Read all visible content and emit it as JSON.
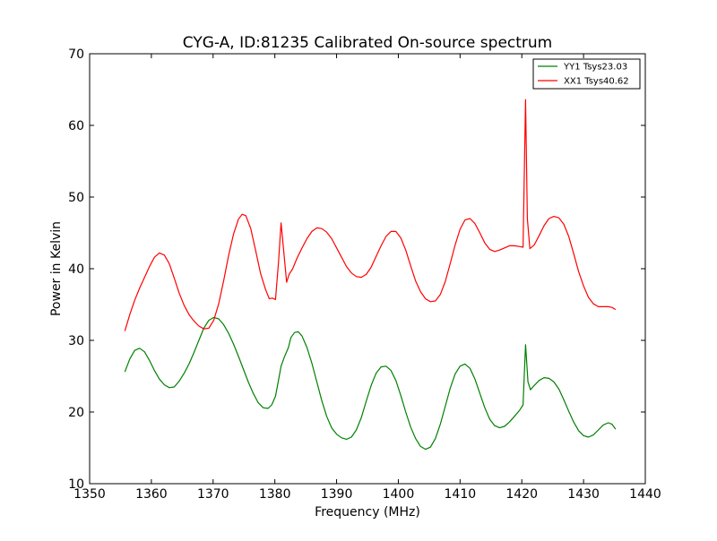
{
  "chart_data": {
    "type": "line",
    "title": "CYG-A, ID:81235 Calibrated On-source spectrum",
    "xlabel": "Frequency (MHz)",
    "ylabel": "Power in Kelvin",
    "xlim": [
      1350,
      1440
    ],
    "ylim": [
      10,
      70
    ],
    "xticks": [
      1350,
      1360,
      1370,
      1380,
      1390,
      1400,
      1410,
      1420,
      1430,
      1440
    ],
    "yticks": [
      10,
      20,
      30,
      40,
      50,
      60,
      70
    ],
    "grid": false,
    "legend_position": "top-right",
    "series": [
      {
        "name": "YY1 Tsys23.03",
        "color": "#008000",
        "points": [
          [
            1355.7,
            25.6
          ],
          [
            1356.5,
            27.4
          ],
          [
            1357.3,
            28.6
          ],
          [
            1358.1,
            28.9
          ],
          [
            1358.9,
            28.4
          ],
          [
            1359.7,
            27.2
          ],
          [
            1360.5,
            25.8
          ],
          [
            1361.3,
            24.6
          ],
          [
            1362.1,
            23.8
          ],
          [
            1362.9,
            23.4
          ],
          [
            1363.7,
            23.5
          ],
          [
            1364.5,
            24.3
          ],
          [
            1365.3,
            25.4
          ],
          [
            1366.1,
            26.7
          ],
          [
            1366.9,
            28.3
          ],
          [
            1367.7,
            30.0
          ],
          [
            1368.5,
            31.7
          ],
          [
            1369.3,
            32.8
          ],
          [
            1370.1,
            33.2
          ],
          [
            1370.9,
            33.0
          ],
          [
            1371.7,
            32.2
          ],
          [
            1372.5,
            31.0
          ],
          [
            1373.3,
            29.5
          ],
          [
            1374.1,
            27.8
          ],
          [
            1374.9,
            26.0
          ],
          [
            1375.7,
            24.2
          ],
          [
            1376.5,
            22.6
          ],
          [
            1377.3,
            21.3
          ],
          [
            1378.1,
            20.6
          ],
          [
            1378.9,
            20.5
          ],
          [
            1379.5,
            21.0
          ],
          [
            1380.1,
            22.2
          ],
          [
            1380.5,
            24.0
          ],
          [
            1381.0,
            26.4
          ],
          [
            1381.6,
            27.8
          ],
          [
            1382.2,
            29.0
          ],
          [
            1382.6,
            30.4
          ],
          [
            1383.2,
            31.1
          ],
          [
            1383.8,
            31.2
          ],
          [
            1384.4,
            30.6
          ],
          [
            1385.2,
            29.0
          ],
          [
            1386.0,
            26.8
          ],
          [
            1386.8,
            24.2
          ],
          [
            1387.6,
            21.6
          ],
          [
            1388.4,
            19.4
          ],
          [
            1389.2,
            17.8
          ],
          [
            1390.0,
            16.9
          ],
          [
            1390.8,
            16.4
          ],
          [
            1391.6,
            16.2
          ],
          [
            1392.4,
            16.5
          ],
          [
            1393.2,
            17.5
          ],
          [
            1394.0,
            19.2
          ],
          [
            1394.8,
            21.5
          ],
          [
            1395.6,
            23.7
          ],
          [
            1396.4,
            25.4
          ],
          [
            1397.2,
            26.3
          ],
          [
            1398.0,
            26.4
          ],
          [
            1398.8,
            25.8
          ],
          [
            1399.6,
            24.4
          ],
          [
            1400.4,
            22.3
          ],
          [
            1401.2,
            20.0
          ],
          [
            1402.0,
            17.9
          ],
          [
            1402.8,
            16.3
          ],
          [
            1403.6,
            15.2
          ],
          [
            1404.4,
            14.8
          ],
          [
            1405.2,
            15.1
          ],
          [
            1406.0,
            16.3
          ],
          [
            1406.8,
            18.3
          ],
          [
            1407.6,
            20.8
          ],
          [
            1408.4,
            23.3
          ],
          [
            1409.2,
            25.3
          ],
          [
            1410.0,
            26.4
          ],
          [
            1410.8,
            26.7
          ],
          [
            1411.6,
            26.1
          ],
          [
            1412.4,
            24.6
          ],
          [
            1413.2,
            22.6
          ],
          [
            1414.0,
            20.6
          ],
          [
            1414.8,
            19.0
          ],
          [
            1415.6,
            18.1
          ],
          [
            1416.4,
            17.8
          ],
          [
            1417.2,
            18.0
          ],
          [
            1418.0,
            18.6
          ],
          [
            1418.8,
            19.4
          ],
          [
            1419.6,
            20.2
          ],
          [
            1420.2,
            21.0
          ],
          [
            1420.6,
            29.4
          ],
          [
            1421.0,
            24.2
          ],
          [
            1421.4,
            23.1
          ],
          [
            1422.0,
            23.7
          ],
          [
            1422.8,
            24.4
          ],
          [
            1423.6,
            24.8
          ],
          [
            1424.4,
            24.7
          ],
          [
            1425.2,
            24.2
          ],
          [
            1426.0,
            23.2
          ],
          [
            1426.8,
            21.7
          ],
          [
            1427.6,
            20.1
          ],
          [
            1428.4,
            18.6
          ],
          [
            1429.2,
            17.4
          ],
          [
            1430.0,
            16.7
          ],
          [
            1430.8,
            16.5
          ],
          [
            1431.6,
            16.8
          ],
          [
            1432.4,
            17.5
          ],
          [
            1433.2,
            18.2
          ],
          [
            1434.0,
            18.5
          ],
          [
            1434.6,
            18.3
          ],
          [
            1435.2,
            17.6
          ]
        ]
      },
      {
        "name": "XX1 Tsys40.62",
        "color": "#ff0000",
        "points": [
          [
            1355.7,
            31.3
          ],
          [
            1356.5,
            33.6
          ],
          [
            1357.3,
            35.6
          ],
          [
            1358.1,
            37.3
          ],
          [
            1358.9,
            38.8
          ],
          [
            1359.7,
            40.3
          ],
          [
            1360.5,
            41.6
          ],
          [
            1361.3,
            42.2
          ],
          [
            1362.1,
            41.9
          ],
          [
            1362.9,
            40.7
          ],
          [
            1363.7,
            38.7
          ],
          [
            1364.5,
            36.6
          ],
          [
            1365.3,
            34.9
          ],
          [
            1366.1,
            33.6
          ],
          [
            1366.9,
            32.7
          ],
          [
            1367.7,
            32.0
          ],
          [
            1368.5,
            31.6
          ],
          [
            1369.3,
            31.7
          ],
          [
            1370.1,
            32.8
          ],
          [
            1370.9,
            35.1
          ],
          [
            1371.7,
            38.3
          ],
          [
            1372.5,
            41.8
          ],
          [
            1373.3,
            44.8
          ],
          [
            1374.1,
            46.9
          ],
          [
            1374.7,
            47.6
          ],
          [
            1375.3,
            47.4
          ],
          [
            1376.1,
            45.6
          ],
          [
            1376.9,
            42.5
          ],
          [
            1377.7,
            39.3
          ],
          [
            1378.5,
            37.1
          ],
          [
            1379.1,
            35.8
          ],
          [
            1379.6,
            35.9
          ],
          [
            1380.1,
            35.7
          ],
          [
            1380.6,
            41.0
          ],
          [
            1381.0,
            46.4
          ],
          [
            1381.4,
            42.8
          ],
          [
            1381.9,
            38.1
          ],
          [
            1382.3,
            39.2
          ],
          [
            1382.9,
            40.0
          ],
          [
            1383.6,
            41.5
          ],
          [
            1384.4,
            42.9
          ],
          [
            1385.2,
            44.2
          ],
          [
            1386.0,
            45.2
          ],
          [
            1386.8,
            45.7
          ],
          [
            1387.6,
            45.6
          ],
          [
            1388.4,
            45.1
          ],
          [
            1389.2,
            44.2
          ],
          [
            1390.0,
            42.9
          ],
          [
            1390.8,
            41.6
          ],
          [
            1391.6,
            40.3
          ],
          [
            1392.4,
            39.4
          ],
          [
            1393.2,
            38.9
          ],
          [
            1394.0,
            38.8
          ],
          [
            1394.8,
            39.2
          ],
          [
            1395.6,
            40.2
          ],
          [
            1396.4,
            41.7
          ],
          [
            1397.2,
            43.2
          ],
          [
            1398.0,
            44.5
          ],
          [
            1398.8,
            45.2
          ],
          [
            1399.6,
            45.2
          ],
          [
            1400.4,
            44.3
          ],
          [
            1401.2,
            42.6
          ],
          [
            1402.0,
            40.4
          ],
          [
            1402.8,
            38.3
          ],
          [
            1403.6,
            36.8
          ],
          [
            1404.4,
            35.8
          ],
          [
            1405.2,
            35.4
          ],
          [
            1406.0,
            35.5
          ],
          [
            1406.8,
            36.4
          ],
          [
            1407.6,
            38.2
          ],
          [
            1408.4,
            40.7
          ],
          [
            1409.2,
            43.3
          ],
          [
            1410.0,
            45.5
          ],
          [
            1410.8,
            46.8
          ],
          [
            1411.6,
            47.0
          ],
          [
            1412.4,
            46.3
          ],
          [
            1413.2,
            45.0
          ],
          [
            1414.0,
            43.6
          ],
          [
            1414.8,
            42.7
          ],
          [
            1415.6,
            42.4
          ],
          [
            1416.4,
            42.6
          ],
          [
            1417.2,
            42.9
          ],
          [
            1418.0,
            43.2
          ],
          [
            1418.8,
            43.2
          ],
          [
            1419.6,
            43.1
          ],
          [
            1420.2,
            43.0
          ],
          [
            1420.6,
            63.6
          ],
          [
            1420.9,
            47.0
          ],
          [
            1421.3,
            42.8
          ],
          [
            1422.0,
            43.3
          ],
          [
            1422.8,
            44.6
          ],
          [
            1423.6,
            46.0
          ],
          [
            1424.4,
            47.0
          ],
          [
            1425.2,
            47.3
          ],
          [
            1426.0,
            47.1
          ],
          [
            1426.8,
            46.2
          ],
          [
            1427.6,
            44.5
          ],
          [
            1428.4,
            42.1
          ],
          [
            1429.2,
            39.6
          ],
          [
            1430.0,
            37.6
          ],
          [
            1430.8,
            36.0
          ],
          [
            1431.6,
            35.1
          ],
          [
            1432.4,
            34.7
          ],
          [
            1433.2,
            34.7
          ],
          [
            1434.0,
            34.7
          ],
          [
            1434.6,
            34.6
          ],
          [
            1435.2,
            34.3
          ]
        ]
      }
    ]
  }
}
